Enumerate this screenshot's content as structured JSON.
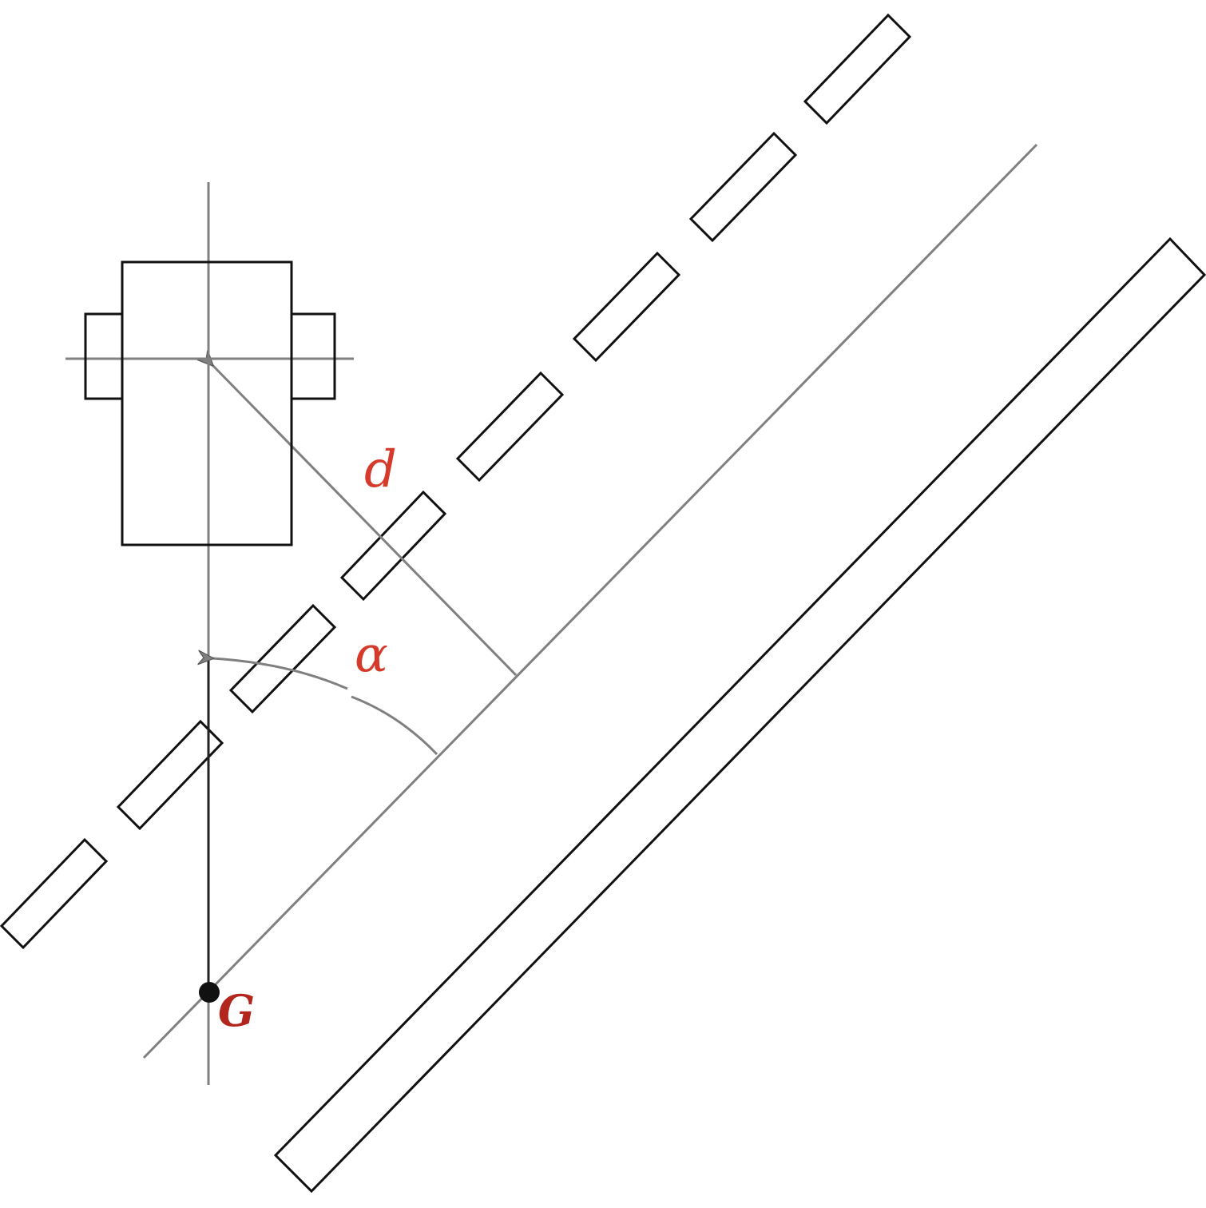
{
  "labels": {
    "distance": "d",
    "angle": "α",
    "point": "G"
  },
  "colors": {
    "label_red": "#d63a2a",
    "point_label": "#b3261e",
    "outline": "#111111",
    "guide": "#808080",
    "point": "#111111"
  }
}
